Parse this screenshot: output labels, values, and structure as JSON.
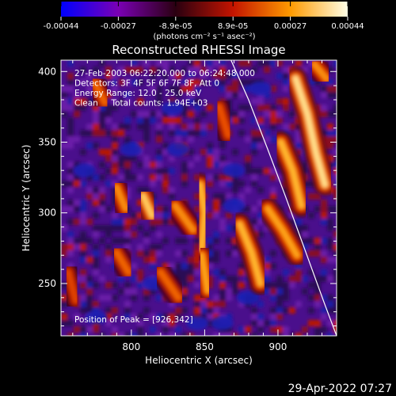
{
  "chart_data": {
    "type": "heatmap",
    "title": "Reconstructed RHESSI Image",
    "xlabel": "Heliocentric X (arcsec)",
    "ylabel": "Heliocentric Y (arcsec)",
    "xlim": [
      752,
      940
    ],
    "ylim": [
      213,
      408
    ],
    "x_ticks": [
      800,
      850,
      900
    ],
    "y_ticks": [
      250,
      300,
      350,
      400
    ],
    "colorbar": {
      "min": -0.00044,
      "max": 0.00044,
      "tick_labels": [
        "-0.00044",
        "-0.00027",
        "-8.9e-05",
        "8.9e-05",
        "0.00027",
        "0.00044"
      ],
      "unit_label": "(photons cm⁻² s⁻¹ asec⁻²)",
      "colors": [
        "#0000ff",
        "#7a00b4",
        "#2a0010",
        "#c41400",
        "#ff9a00",
        "#ffffe6"
      ]
    },
    "annotations": [
      "27-Feb-2003 06:22:20.000 to 06:24:48.000",
      "Detectors: 3F 4F 5F 6F 7F 8F, Att 0",
      "Energy Range: 12.0 - 25.0 keV",
      "Clean     Total counts: 1.94E+03"
    ],
    "peak_label": "Position of Peak = [926,342]",
    "limb_curve": [
      [
        868,
        408
      ],
      [
        880,
        380
      ],
      [
        893,
        345
      ],
      [
        905,
        312
      ],
      [
        918,
        275
      ],
      [
        932,
        235
      ],
      [
        940,
        213
      ]
    ],
    "bright_ridges": [
      {
        "points": [
          [
            790,
            318
          ],
          [
            796,
            303
          ]
        ],
        "level": 0.8
      },
      {
        "points": [
          [
            808,
            312
          ],
          [
            814,
            298
          ]
        ],
        "level": 0.95
      },
      {
        "points": [
          [
            830,
            305
          ],
          [
            842,
            288
          ]
        ],
        "level": 0.8
      },
      {
        "points": [
          [
            847,
            320
          ],
          [
            850,
            300
          ],
          [
            848,
            275
          ]
        ],
        "level": 0.9
      },
      {
        "points": [
          [
            848,
            270
          ],
          [
            852,
            245
          ]
        ],
        "level": 0.85
      },
      {
        "points": [
          [
            874,
            292
          ],
          [
            882,
            272
          ],
          [
            888,
            250
          ]
        ],
        "level": 0.9
      },
      {
        "points": [
          [
            893,
            303
          ],
          [
            903,
            288
          ],
          [
            913,
            270
          ]
        ],
        "level": 0.85
      },
      {
        "points": [
          [
            902,
            350
          ],
          [
            910,
            330
          ],
          [
            916,
            305
          ]
        ],
        "level": 0.9
      },
      {
        "points": [
          [
            912,
            395
          ],
          [
            920,
            370
          ],
          [
            926,
            342
          ],
          [
            932,
            320
          ]
        ],
        "level": 1.0
      },
      {
        "points": [
          [
            925,
            405
          ],
          [
            933,
            395
          ]
        ],
        "level": 0.8
      },
      {
        "points": [
          [
            775,
            392
          ],
          [
            782,
            378
          ]
        ],
        "level": 0.7
      },
      {
        "points": [
          [
            790,
            272
          ],
          [
            798,
            258
          ]
        ],
        "level": 0.7
      },
      {
        "points": [
          [
            820,
            258
          ],
          [
            832,
            240
          ]
        ],
        "level": 0.7
      },
      {
        "points": [
          [
            860,
            375
          ],
          [
            866,
            355
          ]
        ],
        "level": 0.65
      },
      {
        "points": [
          [
            757,
            258
          ],
          [
            762,
            238
          ]
        ],
        "level": 0.6
      }
    ],
    "dark_spots": [
      [
        815,
        250
      ],
      [
        870,
        330
      ],
      [
        880,
        240
      ],
      [
        845,
        222
      ],
      [
        800,
        345
      ],
      [
        862,
        222
      ],
      [
        888,
        388
      ],
      [
        768,
        330
      ],
      [
        828,
        374
      ],
      [
        870,
        305
      ],
      [
        776,
        226
      ],
      [
        832,
        345
      ]
    ]
  },
  "footer": {
    "timestamp": "29-Apr-2022 07:27"
  }
}
